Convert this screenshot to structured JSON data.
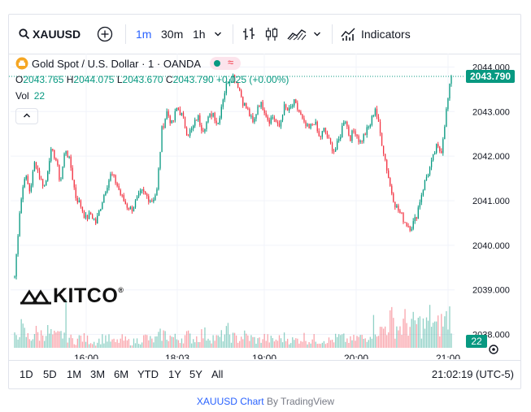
{
  "toolbar": {
    "symbol": "XAUUSD",
    "intervals": [
      "1m",
      "30m",
      "1h"
    ],
    "indicators_label": "Indicators"
  },
  "legend": {
    "title": "Gold Spot / U.S. Dollar · 1 · OANDA",
    "o_label": "O",
    "o": "2043.765",
    "h_label": "H",
    "h": "2044.075",
    "l_label": "L",
    "l": "2043.670",
    "c_label": "C",
    "c": "2043.790",
    "change": "+0.025 (+0.00%)",
    "vol_label": "Vol",
    "vol": "22"
  },
  "price_tag": "2043.790",
  "volume_tag": "22",
  "bottom_bar": {
    "ranges": [
      "1D",
      "5D",
      "1M",
      "3M",
      "6M",
      "YTD",
      "1Y",
      "5Y",
      "All"
    ],
    "clock": "21:02:19 (UTC-5)"
  },
  "footer": {
    "link": "XAUUSD Chart",
    "by": "By TradingView"
  },
  "watermark": "KITCO",
  "colors": {
    "up": "#089981",
    "down": "#f23645",
    "accent": "#2962ff"
  },
  "chart_data": {
    "type": "candlestick",
    "y_ticks": [
      "2044.000",
      "2043.000",
      "2042.000",
      "2041.000",
      "2040.000",
      "2039.000",
      "2038.000"
    ],
    "x_ticks": [
      "16:00",
      "18:03",
      "19:00",
      "20:00",
      "21:00"
    ],
    "ylim": [
      2037.7,
      2044.3
    ],
    "close_path": [
      2039.3,
      2040.8,
      2041.6,
      2041.2,
      2041.9,
      2041.5,
      2041.3,
      2042.1,
      2042.0,
      2041.4,
      2042.2,
      2041.8,
      2041.1,
      2040.9,
      2040.6,
      2040.7,
      2040.5,
      2040.9,
      2041.3,
      2041.6,
      2041.4,
      2041.1,
      2040.9,
      2040.8,
      2041.0,
      2041.2,
      2041.1,
      2041.0,
      2041.2,
      2042.6,
      2043.0,
      2042.7,
      2043.1,
      2042.9,
      2042.5,
      2042.6,
      2042.9,
      2042.6,
      2042.8,
      2043.0,
      2042.7,
      2043.3,
      2043.7,
      2043.8,
      2043.6,
      2043.2,
      2043.0,
      2042.7,
      2043.2,
      2043.1,
      2042.8,
      2042.9,
      2042.6,
      2043.1,
      2043.0,
      2043.2,
      2043.0,
      2042.7,
      2042.6,
      2042.8,
      2042.4,
      2042.6,
      2042.3,
      2042.1,
      2042.4,
      2042.9,
      2042.4,
      2042.6,
      2042.3,
      2042.5,
      2042.7,
      2043.1,
      2042.5,
      2041.9,
      2041.3,
      2040.9,
      2040.7,
      2040.5,
      2040.4,
      2040.6,
      2041.1,
      2041.5,
      2041.8,
      2042.2,
      2042.1,
      2043.0,
      2043.8
    ],
    "volume_path": [
      6,
      12,
      8,
      5,
      9,
      7,
      10,
      8,
      6,
      7,
      9,
      5,
      4,
      6,
      5,
      4,
      3,
      5,
      6,
      4,
      3,
      5,
      4,
      3,
      4,
      5,
      6,
      4,
      5,
      8,
      7,
      6,
      5,
      6,
      7,
      5,
      6,
      8,
      7,
      6,
      5,
      7,
      9,
      6,
      5,
      7,
      6,
      5,
      4,
      6,
      5,
      4,
      5,
      6,
      5,
      4,
      5,
      6,
      4,
      5,
      4,
      5,
      4,
      5,
      6,
      5,
      4,
      5,
      6,
      5,
      10,
      14,
      9,
      12,
      16,
      13,
      11,
      15,
      12,
      14,
      13,
      12,
      18,
      11,
      14,
      16,
      20
    ]
  }
}
